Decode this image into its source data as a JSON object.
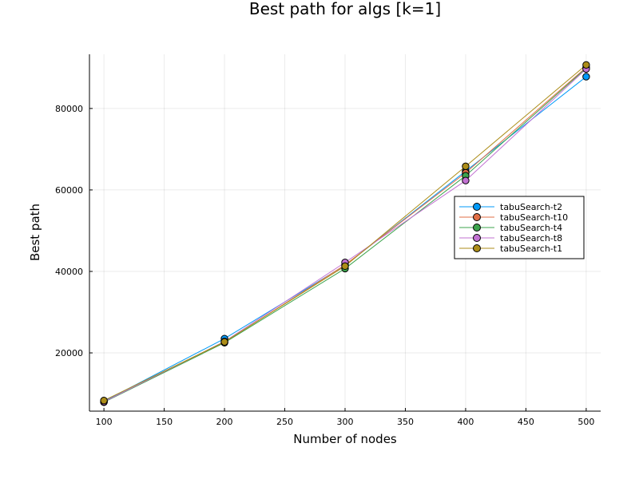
{
  "chart_data": {
    "type": "line",
    "title": "Best path for algs [k=1]",
    "xlabel": "Number of nodes",
    "ylabel": "Best path",
    "x": [
      100,
      200,
      300,
      400,
      500
    ],
    "xlim": [
      88,
      512
    ],
    "ylim": [
      5700,
      93300
    ],
    "xticks": [
      100,
      150,
      200,
      250,
      300,
      350,
      400,
      450,
      500
    ],
    "yticks": [
      20000,
      40000,
      60000,
      80000
    ],
    "grid": true,
    "legend_position": "right",
    "markers": "circle",
    "series": [
      {
        "name": "tabuSearch-t2",
        "color": "#009af9",
        "values": [
          8100,
          23500,
          41500,
          64600,
          87800
        ]
      },
      {
        "name": "tabuSearch-t10",
        "color": "#e26f46",
        "values": [
          8000,
          22600,
          41600,
          64200,
          90100
        ]
      },
      {
        "name": "tabuSearch-t4",
        "color": "#3da44d",
        "values": [
          7900,
          22500,
          40700,
          63500,
          89900
        ]
      },
      {
        "name": "tabuSearch-t8",
        "color": "#c271d2",
        "values": [
          8000,
          22800,
          42200,
          62300,
          89700
        ]
      },
      {
        "name": "tabuSearch-t1",
        "color": "#ac8d18",
        "values": [
          8300,
          22700,
          41300,
          65800,
          90700
        ]
      }
    ]
  }
}
